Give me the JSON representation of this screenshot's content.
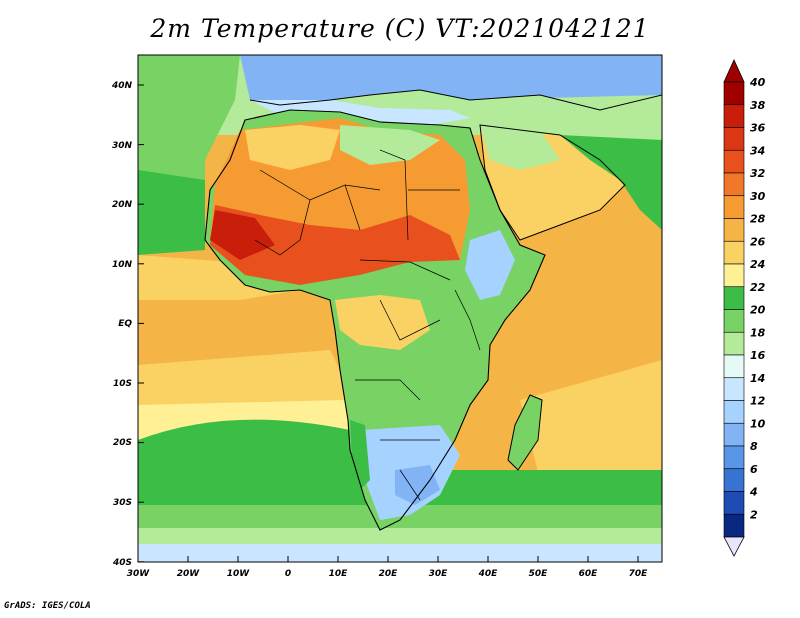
{
  "title": "2m Temperature (C) VT:2021042121",
  "credit": "GrADS: IGES/COLA",
  "lat_labels": [
    "40N",
    "30N",
    "20N",
    "10N",
    "EQ",
    "10S",
    "20S",
    "30S",
    "40S"
  ],
  "lon_labels": [
    "30W",
    "20W",
    "10W",
    "0",
    "10E",
    "20E",
    "30E",
    "40E",
    "50E",
    "60E",
    "70E"
  ],
  "colorbar": {
    "labels": [
      "40",
      "38",
      "36",
      "34",
      "32",
      "30",
      "28",
      "26",
      "24",
      "22",
      "20",
      "18",
      "16",
      "14",
      "12",
      "10",
      "8",
      "6",
      "4",
      "2"
    ],
    "colors": [
      "#a00000",
      "#c81e0a",
      "#dc3714",
      "#e8501e",
      "#f07828",
      "#f59b32",
      "#f5b446",
      "#fad264",
      "#fff096",
      "#3cbe46",
      "#78d264",
      "#b4eb9b",
      "#e6faf5",
      "#c8e6ff",
      "#a5d2ff",
      "#82b4f5",
      "#5a96e6",
      "#3773d2",
      "#1e4bb4",
      "#0a2882"
    ],
    "top_arrow_color": "#a00000",
    "bottom_arrow_color": "#e8e6ff"
  },
  "map_colors": {
    "ocean_warm": "#f5b446",
    "ocean_mild": "#fad264",
    "ocean_cool": "#fff096",
    "ocean_green": "#3cbe46",
    "ocean_light_green": "#78d264",
    "ocean_pale": "#b4eb9b",
    "ocean_coldest": "#c8e6ff",
    "sahel_hot": "#e8501e",
    "sahara": "#f59b32",
    "forest": "#78d264",
    "highland": "#a5d2ff",
    "europe": "#82b4f5"
  }
}
